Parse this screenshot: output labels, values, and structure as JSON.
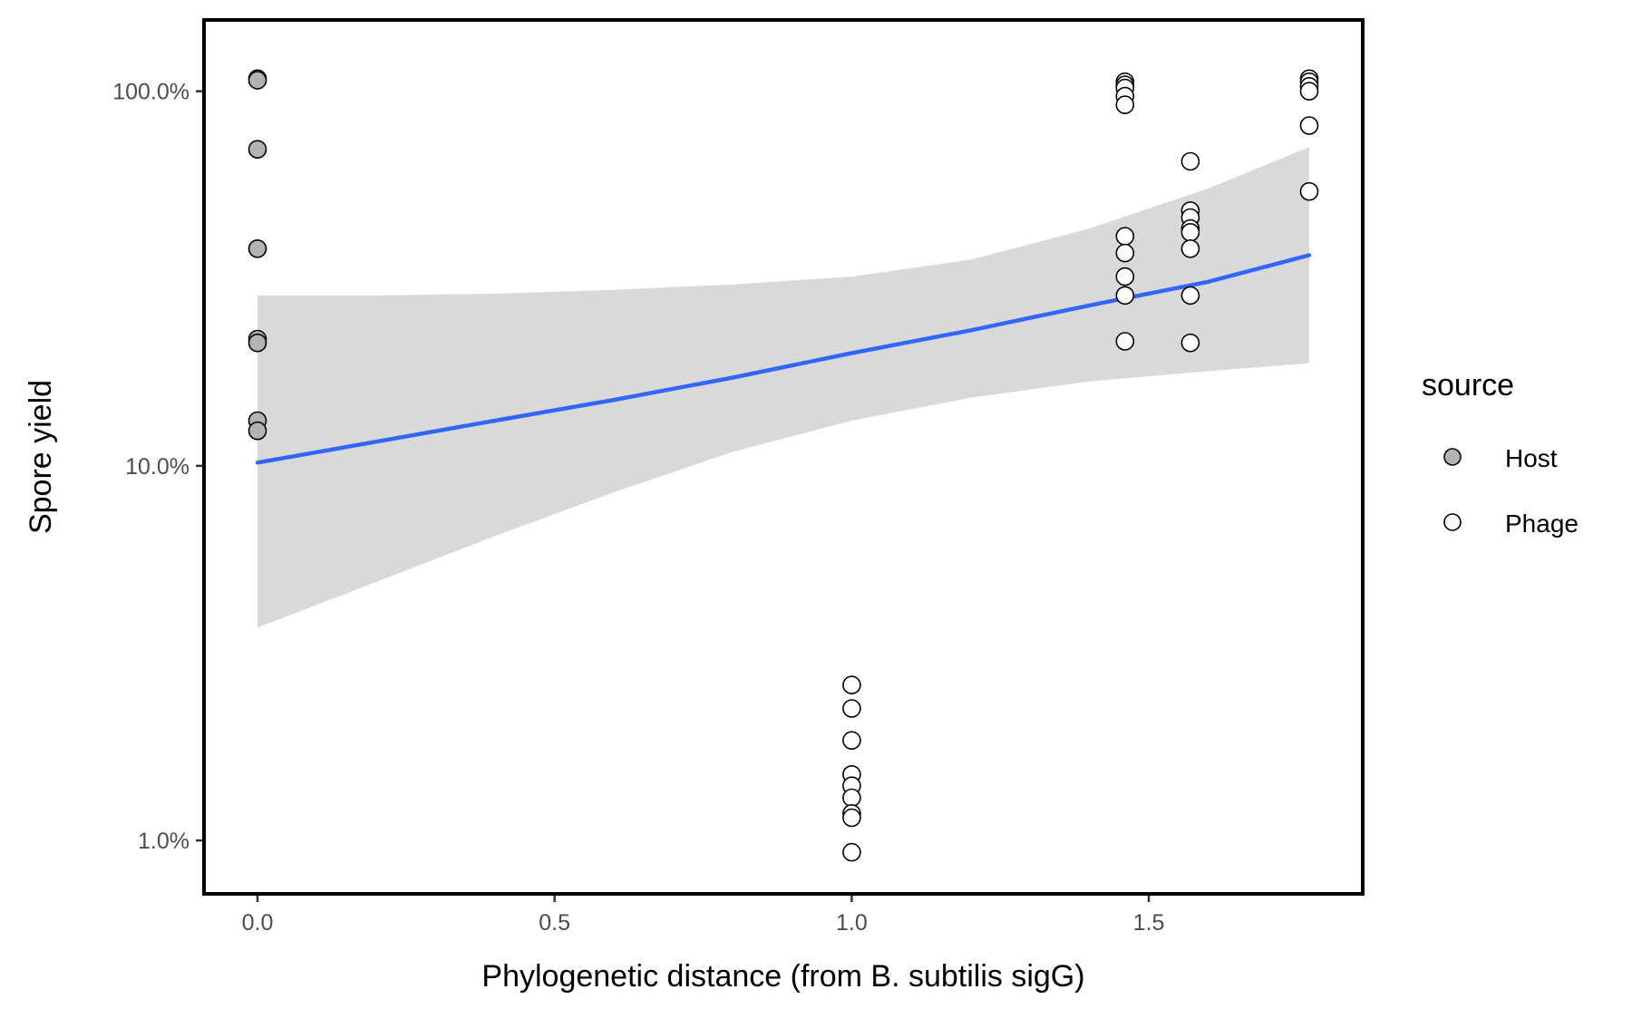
{
  "chart_data": {
    "type": "scatter",
    "xlabel": "Phylogenetic distance (from B. subtilis sigG)",
    "ylabel": "Spore yield",
    "x_ticks": [
      0.0,
      0.5,
      1.0,
      1.5
    ],
    "x_tick_labels": [
      "0.0",
      "0.5",
      "1.0",
      "1.5"
    ],
    "xlim": [
      -0.09,
      1.86
    ],
    "y_scale": "log10",
    "y_ticks": [
      1.0,
      10.0,
      100.0
    ],
    "y_tick_labels": [
      "1.0%",
      "10.0%",
      "100.0%"
    ],
    "ylim": [
      0.72,
      155
    ],
    "grid": false,
    "legend": {
      "title": "source",
      "position": "right",
      "entries": [
        {
          "label": "Host",
          "fill": "#b3b3b3"
        },
        {
          "label": "Phage",
          "fill": "#ffffff"
        }
      ]
    },
    "series": [
      {
        "name": "Host",
        "fill": "#b3b3b3",
        "points": [
          {
            "x": 0.0,
            "y": 108
          },
          {
            "x": 0.0,
            "y": 107
          },
          {
            "x": 0.0,
            "y": 70
          },
          {
            "x": 0.0,
            "y": 38
          },
          {
            "x": 0.0,
            "y": 21.8
          },
          {
            "x": 0.0,
            "y": 21.3
          },
          {
            "x": 0.0,
            "y": 13.2
          },
          {
            "x": 0.0,
            "y": 12.4
          }
        ]
      },
      {
        "name": "Phage",
        "fill": "#ffffff",
        "points": [
          {
            "x": 1.0,
            "y": 2.6
          },
          {
            "x": 1.0,
            "y": 2.25
          },
          {
            "x": 1.0,
            "y": 1.85
          },
          {
            "x": 1.0,
            "y": 1.5
          },
          {
            "x": 1.0,
            "y": 1.4
          },
          {
            "x": 1.0,
            "y": 1.3
          },
          {
            "x": 1.0,
            "y": 1.18
          },
          {
            "x": 1.0,
            "y": 1.15
          },
          {
            "x": 1.0,
            "y": 0.93
          },
          {
            "x": 1.46,
            "y": 106
          },
          {
            "x": 1.46,
            "y": 104
          },
          {
            "x": 1.46,
            "y": 102
          },
          {
            "x": 1.46,
            "y": 97
          },
          {
            "x": 1.46,
            "y": 92
          },
          {
            "x": 1.46,
            "y": 41
          },
          {
            "x": 1.46,
            "y": 37
          },
          {
            "x": 1.46,
            "y": 32
          },
          {
            "x": 1.46,
            "y": 28.5
          },
          {
            "x": 1.46,
            "y": 21.5
          },
          {
            "x": 1.57,
            "y": 65
          },
          {
            "x": 1.57,
            "y": 48
          },
          {
            "x": 1.57,
            "y": 46
          },
          {
            "x": 1.57,
            "y": 43
          },
          {
            "x": 1.57,
            "y": 42
          },
          {
            "x": 1.57,
            "y": 38
          },
          {
            "x": 1.57,
            "y": 28.5
          },
          {
            "x": 1.57,
            "y": 21.3
          },
          {
            "x": 1.77,
            "y": 108
          },
          {
            "x": 1.77,
            "y": 106
          },
          {
            "x": 1.77,
            "y": 103
          },
          {
            "x": 1.77,
            "y": 100
          },
          {
            "x": 1.77,
            "y": 81
          },
          {
            "x": 1.77,
            "y": 54
          }
        ]
      }
    ],
    "fit": {
      "method": "linear regression on log scale",
      "line_color": "#3366ff",
      "ribbon_color": "#d9d9d9",
      "x": [
        0.0,
        0.2,
        0.4,
        0.6,
        0.8,
        1.0,
        1.2,
        1.4,
        1.6,
        1.77
      ],
      "y": [
        10.2,
        11.6,
        13.2,
        15.0,
        17.2,
        20.0,
        23.0,
        26.8,
        31.0,
        36.5
      ],
      "lower": [
        3.7,
        4.9,
        6.5,
        8.5,
        10.9,
        13.2,
        15.2,
        16.8,
        17.9,
        18.8
      ],
      "upper": [
        28.5,
        28.5,
        28.8,
        29.5,
        30.5,
        32.0,
        35.5,
        43.0,
        55.0,
        71.0
      ]
    }
  }
}
